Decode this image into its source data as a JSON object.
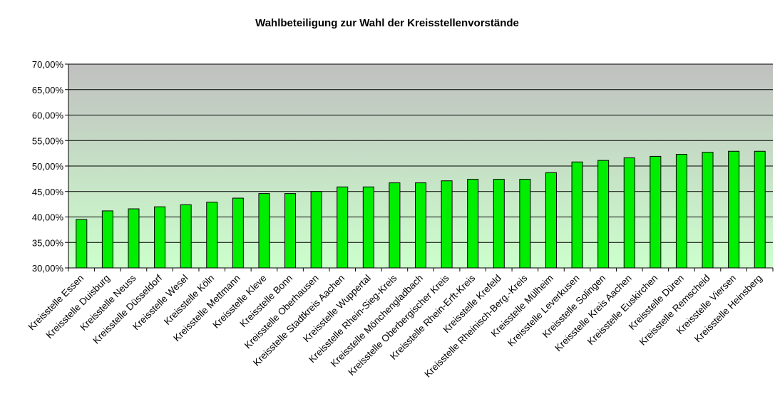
{
  "chart_data": {
    "type": "bar",
    "title": "Wahlbeteiligung zur Wahl der Kreisstellenvorstände",
    "xlabel": "",
    "ylabel": "",
    "ylim": [
      0.3,
      0.7
    ],
    "yticks": [
      0.3,
      0.35,
      0.4,
      0.45,
      0.5,
      0.55,
      0.6,
      0.65,
      0.7
    ],
    "ytick_labels": [
      "30,00%",
      "35,00%",
      "40,00%",
      "45,00%",
      "50,00%",
      "55,00%",
      "60,00%",
      "65,00%",
      "70,00%"
    ],
    "grid": true,
    "legend": "none",
    "colors": {
      "bar_fill": "#00ee00",
      "bar_stroke": "#000000",
      "plot_bg_top": "#c0c0c0",
      "plot_bg_bottom": "#ccffcc",
      "gridline": "#000000"
    },
    "categories": [
      "Kreisstelle Essen",
      "Kreisstelle Duisburg",
      "Kreisstelle Neuss",
      "Kreisstelle Düsseldorf",
      "Kreisstelle Wesel",
      "Kreisstelle Köln",
      "Kreisstelle Mettmann",
      "Kreisstelle Kleve",
      "Kreisstelle Bonn",
      "Kreisstelle Oberhausen",
      "Kreisstelle Stadtkreis Aachen",
      "Kreisstelle Wuppertal",
      "Kreisstelle Rhein-Sieg-Kreis",
      "Kreisstelle Mönchengladbach",
      "Kreisstelle Oberbergischer Kreis",
      "Kreisstelle Rhein-Erft-Kreis",
      "Kreisstelle Krefeld",
      "Kreisstelle Rheinisch-Berg.-Kreis",
      "Kreisstelle Mülheim",
      "Kreisstelle Leverkusen",
      "Kreisstelle Solingen",
      "Kreisstelle Kreis Aachen",
      "Kreisstelle Euskirchen",
      "Kreisstelle Düren",
      "Kreisstelle Remscheid",
      "Kreisstelle Viersen",
      "Kreisstelle Heinsberg"
    ],
    "values": [
      0.395,
      0.412,
      0.416,
      0.42,
      0.424,
      0.429,
      0.437,
      0.446,
      0.446,
      0.45,
      0.459,
      0.459,
      0.467,
      0.467,
      0.471,
      0.474,
      0.474,
      0.474,
      0.487,
      0.508,
      0.511,
      0.516,
      0.519,
      0.523,
      0.527,
      0.529,
      0.529
    ]
  }
}
